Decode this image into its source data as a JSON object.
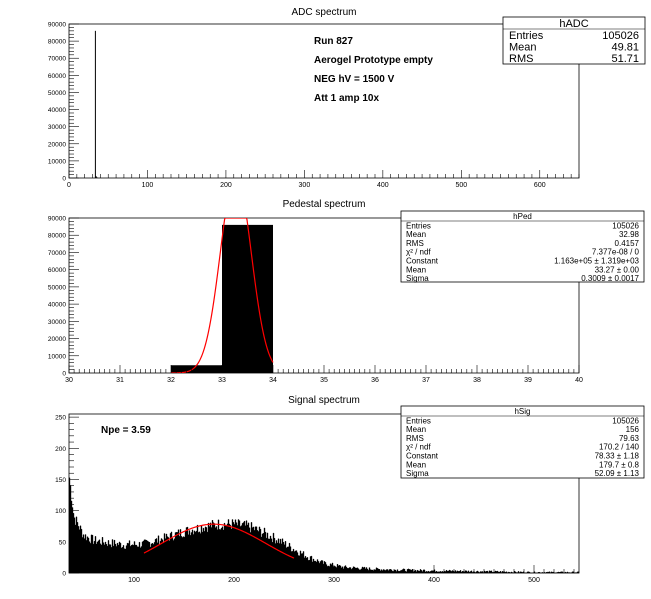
{
  "charts": [
    {
      "id": "adc",
      "type": "bar",
      "title": "ADC spectrum",
      "xlim": [
        0,
        650
      ],
      "ylim": [
        0,
        90000
      ],
      "xticks": [
        0,
        100,
        200,
        300,
        400,
        500,
        600
      ],
      "yticks": [
        0,
        10000,
        20000,
        30000,
        40000,
        50000,
        60000,
        70000,
        80000,
        90000
      ],
      "bins": [
        {
          "x0": 33,
          "x1": 34,
          "value": 86000
        },
        {
          "x0": 34,
          "x1": 35,
          "value": 1000
        },
        {
          "x0": 35,
          "x1": 36,
          "value": 400
        }
      ],
      "annotations": [
        "Run  827",
        "Aerogel Prototype empty",
        "NEG hV = 1500 V",
        "Att 1 amp 10x"
      ],
      "stats": {
        "name": "hADC",
        "rows": [
          {
            "label": "Entries",
            "value": "105026"
          },
          {
            "label": "Mean",
            "value": "49.81"
          },
          {
            "label": "RMS",
            "value": "51.71"
          }
        ]
      }
    },
    {
      "id": "ped",
      "type": "bar",
      "title": "Pedestal spectrum",
      "xlim": [
        30,
        40
      ],
      "ylim": [
        0,
        90000
      ],
      "xticks": [
        30,
        31,
        32,
        33,
        34,
        35,
        36,
        37,
        38,
        39,
        40
      ],
      "yticks": [
        0,
        10000,
        20000,
        30000,
        40000,
        50000,
        60000,
        70000,
        80000,
        90000
      ],
      "bins": [
        {
          "x0": 32,
          "x1": 33,
          "value": 4500
        },
        {
          "x0": 33,
          "x1": 34,
          "value": 86000
        }
      ],
      "fit": {
        "type": "gaussian",
        "constant": 116300,
        "mean": 33.27,
        "sigma": 0.3009,
        "range": [
          32,
          34
        ]
      },
      "stats": {
        "name": "hPed",
        "rows": [
          {
            "label": "Entries",
            "value": "105026"
          },
          {
            "label": "Mean",
            "value": "32.98"
          },
          {
            "label": "RMS",
            "value": "0.4157"
          },
          {
            "label": "χ² / ndf",
            "value": "7.377e-08 / 0"
          },
          {
            "label": "Constant",
            "value": "1.163e+05 ± 1.319e+03"
          },
          {
            "label": "Mean",
            "value": "33.27 ± 0.00"
          },
          {
            "label": "Sigma",
            "value": "0.3009 ± 0.0017"
          }
        ]
      }
    },
    {
      "id": "sig",
      "type": "bar",
      "title": "Signal spectrum",
      "xlim": [
        35,
        545
      ],
      "ylim": [
        0,
        255
      ],
      "xticks": [
        100,
        200,
        300,
        400,
        500
      ],
      "yticks": [
        0,
        50,
        100,
        150,
        200,
        250
      ],
      "envelope": [
        {
          "x": 35,
          "y": 160
        },
        {
          "x": 40,
          "y": 90
        },
        {
          "x": 50,
          "y": 60
        },
        {
          "x": 60,
          "y": 52
        },
        {
          "x": 75,
          "y": 48
        },
        {
          "x": 90,
          "y": 45
        },
        {
          "x": 110,
          "y": 46
        },
        {
          "x": 130,
          "y": 55
        },
        {
          "x": 150,
          "y": 66
        },
        {
          "x": 170,
          "y": 74
        },
        {
          "x": 185,
          "y": 78
        },
        {
          "x": 200,
          "y": 78
        },
        {
          "x": 215,
          "y": 74
        },
        {
          "x": 230,
          "y": 64
        },
        {
          "x": 245,
          "y": 52
        },
        {
          "x": 260,
          "y": 38
        },
        {
          "x": 275,
          "y": 25
        },
        {
          "x": 290,
          "y": 15
        },
        {
          "x": 310,
          "y": 9
        },
        {
          "x": 340,
          "y": 6
        },
        {
          "x": 380,
          "y": 4
        },
        {
          "x": 420,
          "y": 3
        },
        {
          "x": 460,
          "y": 2
        },
        {
          "x": 500,
          "y": 1
        },
        {
          "x": 545,
          "y": 1
        }
      ],
      "fit": {
        "type": "gaussian",
        "constant": 78.33,
        "mean": 179.7,
        "sigma": 52.09,
        "range": [
          110,
          260
        ]
      },
      "annotations": [
        "Npe = 3.59"
      ],
      "stats": {
        "name": "hSig",
        "rows": [
          {
            "label": "Entries",
            "value": "105026"
          },
          {
            "label": "Mean",
            "value": "156"
          },
          {
            "label": "RMS",
            "value": "79.63"
          },
          {
            "label": "χ² / ndf",
            "value": "170.2 / 140"
          },
          {
            "label": "Constant",
            "value": "78.33 ± 1.18"
          },
          {
            "label": "Mean",
            "value": "179.7 ± 0.8"
          },
          {
            "label": "Sigma",
            "value": "52.09 ± 1.13"
          }
        ]
      }
    }
  ]
}
